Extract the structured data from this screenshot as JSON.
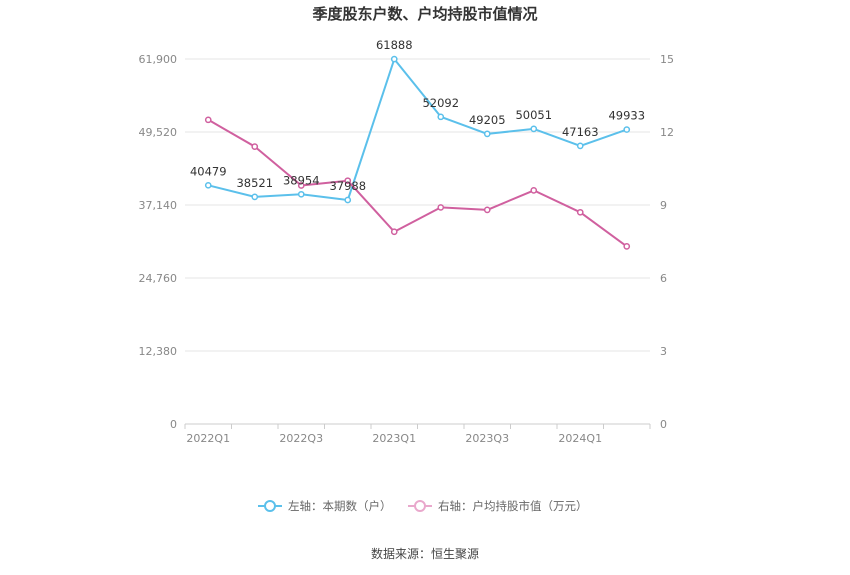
{
  "chart_data": {
    "type": "line",
    "title": "季度股东户数、户均持股市值情况",
    "categories": [
      "2022Q1",
      "2022Q2",
      "2022Q3",
      "2022Q4",
      "2023Q1",
      "2023Q2",
      "2023Q3",
      "2023Q4",
      "2024Q1",
      "2024Q2"
    ],
    "x_tick_labels": [
      "2022Q1",
      "2022Q3",
      "2023Q1",
      "2023Q3",
      "2024Q1"
    ],
    "left_axis": {
      "ylim": [
        0,
        61900
      ],
      "ticks": [
        0,
        12380,
        24760,
        37140,
        49520,
        61900
      ],
      "tick_labels": [
        "0",
        "12,380",
        "24,760",
        "37,140",
        "49,520",
        "61,900"
      ]
    },
    "right_axis": {
      "ylim": [
        0,
        15
      ],
      "ticks": [
        0,
        3,
        6,
        9,
        12,
        15
      ],
      "tick_labels": [
        "0",
        "3",
        "6",
        "9",
        "12",
        "15"
      ]
    },
    "series": [
      {
        "name": "左轴：本期数（户）",
        "axis": "left",
        "color": "#5bc0eb",
        "values": [
          40479,
          38521,
          38954,
          37988,
          61888,
          52092,
          49205,
          50051,
          47163,
          49933
        ],
        "data_labels": [
          "40479",
          "38521",
          "38954",
          "37988",
          "61888",
          "52092",
          "49205",
          "50051",
          "47163",
          "49933"
        ]
      },
      {
        "name": "右轴：户均持股市值（万元）",
        "axis": "right",
        "color": "#d0609f",
        "values": [
          12.5,
          11.4,
          9.8,
          10.0,
          7.9,
          8.9,
          8.8,
          9.6,
          8.7,
          7.3
        ]
      }
    ],
    "grid": true,
    "legend_position": "bottom",
    "source": "数据来源：恒生聚源"
  }
}
